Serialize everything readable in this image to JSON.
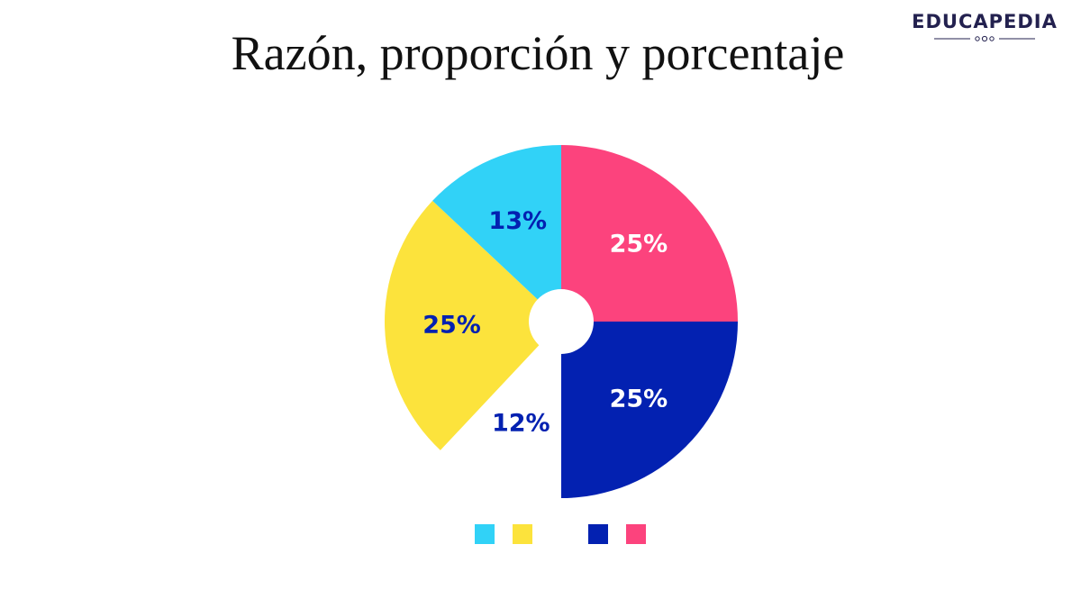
{
  "title": "Razón, proporción y porcentaje",
  "logo": {
    "text": "EDUCAPEDIA",
    "color": "#23214f"
  },
  "chart_data": {
    "type": "pie",
    "style": "donut",
    "start_angle": "12 o'clock",
    "direction": "clockwise",
    "slices": [
      {
        "label": "25%",
        "value": 25,
        "color": "#fc437d",
        "label_color": "#ffffff",
        "shown": true
      },
      {
        "label": "25%",
        "value": 25,
        "color": "#0321b1",
        "label_color": "#ffffff",
        "shown": true
      },
      {
        "label": "12%",
        "value": 12,
        "color": "#ffffff",
        "label_color": "#0321b1",
        "shown": false
      },
      {
        "label": "25%",
        "value": 25,
        "color": "#fce33c",
        "label_color": "#0321b1",
        "shown": true
      },
      {
        "label": "13%",
        "value": 13,
        "color": "#31d2f7",
        "label_color": "#0321b1",
        "shown": true
      }
    ],
    "legend": {
      "placement": "bottom",
      "swatches": [
        "#31d2f7",
        "#fce33c",
        "#ffffff",
        "#0321b1",
        "#fc437d"
      ]
    }
  }
}
